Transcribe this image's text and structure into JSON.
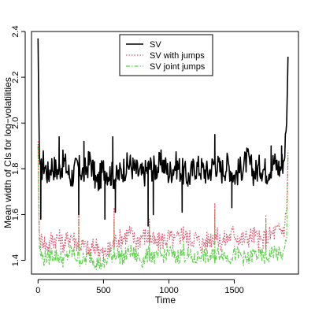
{
  "chart_data": {
    "type": "line",
    "title": "",
    "xlabel": "Time",
    "ylabel": "Mean width of CIs for log−volatilities",
    "xlim": [
      -50,
      1990
    ],
    "ylim": [
      1.34,
      2.4
    ],
    "x_ticks": [
      0,
      500,
      1000,
      1500
    ],
    "y_ticks": [
      1.4,
      1.6,
      1.8,
      2.0,
      2.2,
      2.4
    ],
    "x_tick_labels": [
      "0",
      "500",
      "1000",
      "1500"
    ],
    "y_tick_labels": [
      "1.4",
      "1.6",
      "1.8",
      "2.0",
      "2.2",
      "2.4"
    ],
    "legend_position": "top-center",
    "grid": false,
    "n_points": 1910,
    "series": [
      {
        "name": "SV",
        "color": "#000000",
        "style": "solid",
        "x": [
          0,
          10,
          20,
          40,
          60,
          80,
          100,
          150,
          200,
          250,
          300,
          350,
          400,
          450,
          500,
          550,
          600,
          650,
          700,
          750,
          800,
          850,
          900,
          950,
          1000,
          1050,
          1100,
          1150,
          1200,
          1250,
          1300,
          1350,
          1400,
          1450,
          1500,
          1550,
          1600,
          1650,
          1700,
          1750,
          1800,
          1850,
          1880,
          1900,
          1910
        ],
        "y": [
          2.37,
          1.86,
          1.78,
          1.83,
          1.8,
          1.77,
          1.82,
          1.79,
          1.83,
          1.76,
          1.81,
          1.78,
          1.84,
          1.73,
          1.8,
          1.78,
          1.76,
          1.8,
          1.82,
          1.79,
          1.77,
          1.81,
          1.8,
          1.83,
          1.78,
          1.82,
          1.79,
          1.76,
          1.81,
          1.8,
          1.78,
          1.83,
          1.79,
          1.82,
          1.77,
          1.8,
          1.84,
          1.78,
          1.81,
          1.79,
          1.83,
          1.8,
          1.85,
          2.0,
          2.29
        ]
      },
      {
        "name": "SV with jumps",
        "color": "#DF536B",
        "style": "dotted",
        "x": [
          0,
          10,
          20,
          40,
          60,
          80,
          100,
          150,
          200,
          250,
          300,
          350,
          400,
          450,
          500,
          550,
          600,
          650,
          700,
          750,
          800,
          850,
          900,
          950,
          1000,
          1050,
          1100,
          1150,
          1200,
          1250,
          1300,
          1350,
          1400,
          1450,
          1500,
          1550,
          1600,
          1650,
          1700,
          1750,
          1800,
          1850,
          1880,
          1900,
          1910
        ],
        "y": [
          1.92,
          1.52,
          1.48,
          1.5,
          1.46,
          1.47,
          1.49,
          1.5,
          1.47,
          1.51,
          1.48,
          1.46,
          1.44,
          1.47,
          1.42,
          1.45,
          1.49,
          1.5,
          1.52,
          1.48,
          1.51,
          1.5,
          1.47,
          1.49,
          1.5,
          1.48,
          1.52,
          1.49,
          1.5,
          1.47,
          1.49,
          1.51,
          1.48,
          1.5,
          1.52,
          1.49,
          1.5,
          1.51,
          1.48,
          1.5,
          1.52,
          1.53,
          1.54,
          1.62,
          1.88
        ]
      },
      {
        "name": "SV joint jumps",
        "color": "#61D04F",
        "style": "dashdot",
        "x": [
          0,
          10,
          20,
          40,
          60,
          80,
          100,
          150,
          200,
          250,
          300,
          350,
          400,
          450,
          500,
          550,
          600,
          650,
          700,
          750,
          800,
          850,
          900,
          950,
          1000,
          1050,
          1100,
          1150,
          1200,
          1250,
          1300,
          1350,
          1400,
          1450,
          1500,
          1550,
          1600,
          1650,
          1700,
          1750,
          1800,
          1850,
          1880,
          1900,
          1910
        ],
        "y": [
          1.9,
          1.46,
          1.43,
          1.4,
          1.42,
          1.41,
          1.43,
          1.42,
          1.4,
          1.44,
          1.41,
          1.4,
          1.42,
          1.39,
          1.38,
          1.42,
          1.43,
          1.41,
          1.44,
          1.42,
          1.4,
          1.43,
          1.41,
          1.42,
          1.44,
          1.41,
          1.43,
          1.42,
          1.4,
          1.43,
          1.41,
          1.42,
          1.44,
          1.41,
          1.43,
          1.42,
          1.4,
          1.43,
          1.42,
          1.41,
          1.44,
          1.42,
          1.43,
          1.5,
          1.85
        ]
      }
    ],
    "spikes": [
      {
        "series": "SV",
        "x": [
          20,
          160,
          310,
          350,
          510,
          570,
          590,
          840,
          880,
          1100,
          1350,
          1480,
          1780,
          1860
        ],
        "y": [
          1.58,
          1.94,
          1.6,
          1.92,
          1.58,
          1.94,
          1.61,
          1.55,
          1.6,
          1.61,
          1.95,
          1.63,
          1.9,
          1.9
        ]
      },
      {
        "series": "SV with jumps",
        "x": [
          310,
          580,
          850,
          1110,
          1350,
          1740
        ],
        "y": [
          1.68,
          1.63,
          1.58,
          1.55,
          1.65,
          1.6
        ]
      },
      {
        "series": "SV joint jumps",
        "x": [
          310,
          580,
          850,
          1110,
          1350,
          1740
        ],
        "y": [
          1.62,
          1.58,
          1.55,
          1.5,
          1.62,
          1.58
        ]
      }
    ]
  }
}
